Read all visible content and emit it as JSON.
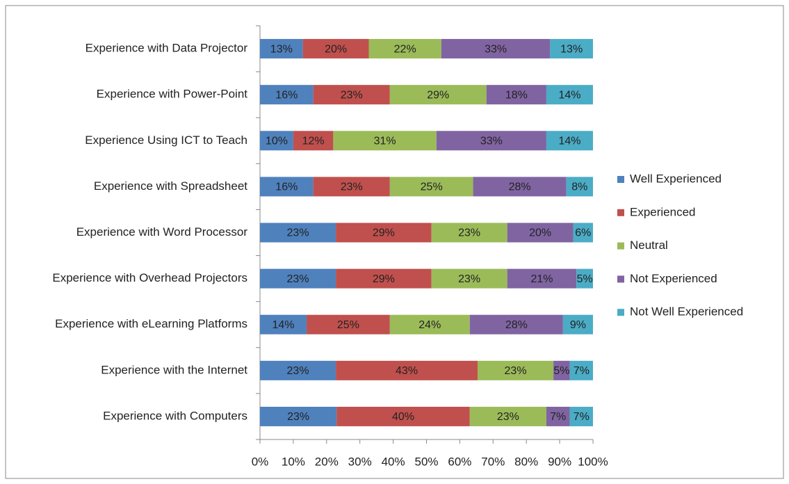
{
  "chart_data": {
    "type": "percent_stacked_hbar",
    "categories": [
      "Experience with Data Projector",
      "Experience with Power-Point",
      "Experience Using ICT to Teach",
      "Experience with Spreadsheet",
      "Experience with Word Processor",
      "Experience with Overhead Projectors",
      "Experience with eLearning Platforms",
      "Experience with the Internet",
      "Experience with Computers"
    ],
    "series": [
      {
        "name": "Well Experienced",
        "color": "#4f81bd",
        "values": [
          13,
          16,
          10,
          16,
          23,
          23,
          14,
          23,
          23
        ],
        "value_labels": [
          "13%",
          "16%",
          "10%",
          "16%",
          "23%",
          "23%",
          "14%",
          "23%",
          "23%"
        ]
      },
      {
        "name": "Experienced",
        "color": "#c0504d",
        "values": [
          20,
          23,
          12,
          23,
          29,
          29,
          25,
          43,
          40
        ],
        "value_labels": [
          "20%",
          "23%",
          "12%",
          "23%",
          "29%",
          "29%",
          "25%",
          "43%",
          "40%"
        ]
      },
      {
        "name": "Neutral",
        "color": "#9bbb59",
        "values": [
          22,
          29,
          31,
          25,
          23,
          23,
          24,
          23,
          23
        ],
        "value_labels": [
          "22%",
          "29%",
          "31%",
          "25%",
          "23%",
          "23%",
          "24%",
          "23%",
          "23%"
        ]
      },
      {
        "name": "Not Experienced",
        "color": "#8064a2",
        "values": [
          33,
          18,
          33,
          28,
          20,
          21,
          28,
          5,
          7
        ],
        "value_labels": [
          "33%",
          "18%",
          "33%",
          "28%",
          "20%",
          "21%",
          "28%",
          "5%",
          "7%"
        ]
      },
      {
        "name": "Not Well Experienced",
        "color": "#4bacc6",
        "values": [
          13,
          14,
          14,
          8,
          6,
          5,
          9,
          7,
          7
        ],
        "value_labels": [
          "13%",
          "14%",
          "14%",
          "8%",
          "6%",
          "5%",
          "9%",
          "7%",
          "7%"
        ]
      }
    ],
    "xlim": [
      0,
      100
    ],
    "xticks": [
      {
        "value": 0,
        "label": "0%"
      },
      {
        "value": 10,
        "label": "10%"
      },
      {
        "value": 20,
        "label": "20%"
      },
      {
        "value": 30,
        "label": "30%"
      },
      {
        "value": 40,
        "label": "40%"
      },
      {
        "value": 50,
        "label": "50%"
      },
      {
        "value": 60,
        "label": "60%"
      },
      {
        "value": 70,
        "label": "70%"
      },
      {
        "value": 80,
        "label": "80%"
      },
      {
        "value": 90,
        "label": "90%"
      },
      {
        "value": 100,
        "label": "100%"
      }
    ],
    "legend": "right"
  }
}
